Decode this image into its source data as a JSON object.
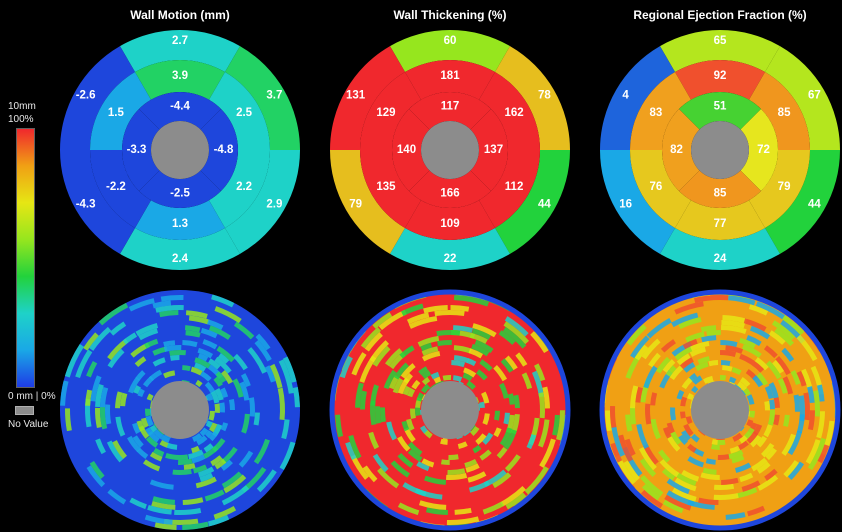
{
  "legend": {
    "top_unit_label": "10mm",
    "top_pct_label": "100%",
    "bottom_label": "0 mm | 0%",
    "no_value_label": "No Value",
    "no_value_color": "#8c8c8c",
    "scale_colors": [
      "#1e3ce6",
      "#1aa8e6",
      "#1ed2c8",
      "#22d23c",
      "#96e61e",
      "#e6e614",
      "#f0a014",
      "#f0282d"
    ]
  },
  "panels": [
    {
      "title": "Wall Motion (mm)",
      "bullseye": {
        "outer": [
          "2.7",
          "3.7",
          "2.9",
          "2.4",
          "-4.3",
          "-2.6"
        ],
        "mid": [
          "3.9",
          "2.5",
          "2.2",
          "1.3",
          "-2.2",
          "1.5"
        ],
        "inner": [
          "-4.4",
          "-4.8",
          "-2.5",
          "-3.3"
        ],
        "outer_colors": [
          "#1ed2c8",
          "#22d264",
          "#1ed2c8",
          "#1ed2c8",
          "#1e46dc",
          "#1e46dc"
        ],
        "mid_colors": [
          "#22d264",
          "#1ed2c8",
          "#1ed2c8",
          "#1aa8e6",
          "#1e46dc",
          "#1aa8e6"
        ],
        "inner_colors": [
          "#1e46dc",
          "#1e46dc",
          "#1e46dc",
          "#1e46dc"
        ]
      },
      "polar_map": {
        "base_color": "#1e46dc",
        "accent_colors": [
          "#1aa8e6",
          "#1ed2c8",
          "#22d264",
          "#96e61e"
        ]
      }
    },
    {
      "title": "Wall Thickening (%)",
      "bullseye": {
        "outer": [
          "60",
          "78",
          "44",
          "22",
          "79",
          "131"
        ],
        "mid": [
          "181",
          "162",
          "112",
          "109",
          "135",
          "129"
        ],
        "inner": [
          "117",
          "137",
          "166",
          "140"
        ],
        "outer_colors": [
          "#96e61e",
          "#e6be1e",
          "#22d23c",
          "#1ed2c8",
          "#e6be1e",
          "#f0282d"
        ],
        "mid_colors": [
          "#f0282d",
          "#f0282d",
          "#f0282d",
          "#f0282d",
          "#f0282d",
          "#f0282d"
        ],
        "inner_colors": [
          "#f0282d",
          "#f0282d",
          "#f0282d",
          "#f0282d"
        ]
      },
      "polar_map": {
        "base_color": "#f0282d",
        "accent_colors": [
          "#e6e614",
          "#96e61e",
          "#22d23c",
          "#1ed2c8"
        ]
      }
    },
    {
      "title": "Regional Ejection Fraction (%)",
      "bullseye": {
        "outer": [
          "65",
          "67",
          "44",
          "24",
          "16",
          "4"
        ],
        "mid": [
          "92",
          "85",
          "79",
          "77",
          "76",
          "83"
        ],
        "inner": [
          "51",
          "72",
          "85",
          "82"
        ],
        "outer_colors": [
          "#b4e61e",
          "#b4e61e",
          "#22d23c",
          "#1ed2c8",
          "#1aa8e6",
          "#1e64dc"
        ],
        "mid_colors": [
          "#f0502d",
          "#f0961e",
          "#e6c81e",
          "#e6c81e",
          "#e6c81e",
          "#f0a01e"
        ],
        "inner_colors": [
          "#46d232",
          "#e6e61e",
          "#f0961e",
          "#f0a01e"
        ]
      },
      "polar_map": {
        "base_color": "#f0a014",
        "accent_colors": [
          "#e6e614",
          "#f0502d",
          "#96e61e",
          "#1aa8e6"
        ]
      }
    }
  ]
}
